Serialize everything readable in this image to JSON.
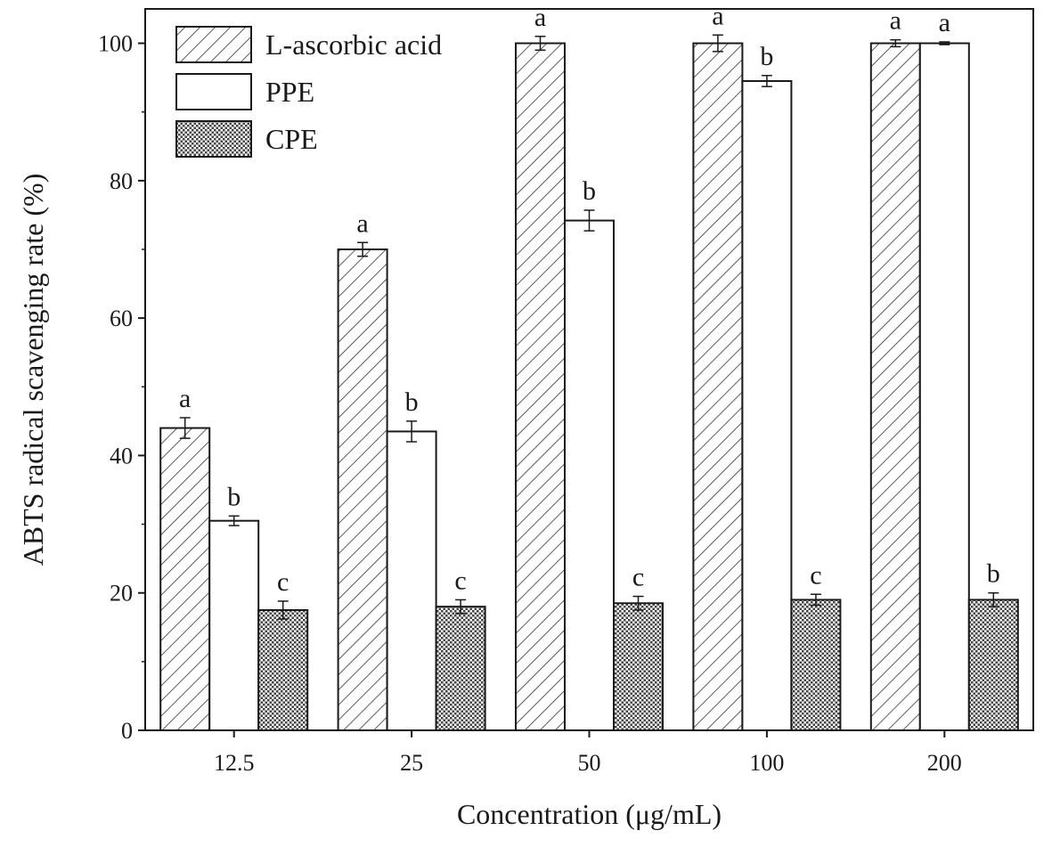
{
  "chart_data": {
    "type": "bar",
    "title": "",
    "xlabel": "Concentration (μg/mL)",
    "ylabel": "ABTS radical scavenging rate (%)",
    "categories": [
      "12.5",
      "25",
      "50",
      "100",
      "200"
    ],
    "ylim": [
      0,
      105
    ],
    "yticks": [
      0,
      20,
      40,
      60,
      80,
      100
    ],
    "grid": false,
    "legend_position": "top-left",
    "series": [
      {
        "name": "L-ascorbic acid",
        "pattern": "hatch",
        "values": [
          44.0,
          70.0,
          100.0,
          100.0,
          100.0
        ],
        "errors": [
          1.5,
          1.0,
          1.0,
          1.2,
          0.5
        ],
        "significance": [
          "a",
          "a",
          "a",
          "a",
          "a"
        ]
      },
      {
        "name": "PPE",
        "pattern": "empty",
        "values": [
          30.5,
          43.5,
          74.2,
          94.5,
          100.0
        ],
        "errors": [
          0.7,
          1.5,
          1.5,
          0.8,
          0.2
        ],
        "significance": [
          "b",
          "b",
          "b",
          "b",
          "a"
        ]
      },
      {
        "name": "CPE",
        "pattern": "dots",
        "values": [
          17.5,
          18.0,
          18.5,
          19.0,
          19.0
        ],
        "errors": [
          1.3,
          1.0,
          1.0,
          0.8,
          1.0
        ],
        "significance": [
          "c",
          "c",
          "c",
          "c",
          "b"
        ]
      }
    ],
    "colors": {
      "stroke": "#1a1a1a",
      "fill": "#ffffff",
      "dots": "#555555"
    }
  }
}
